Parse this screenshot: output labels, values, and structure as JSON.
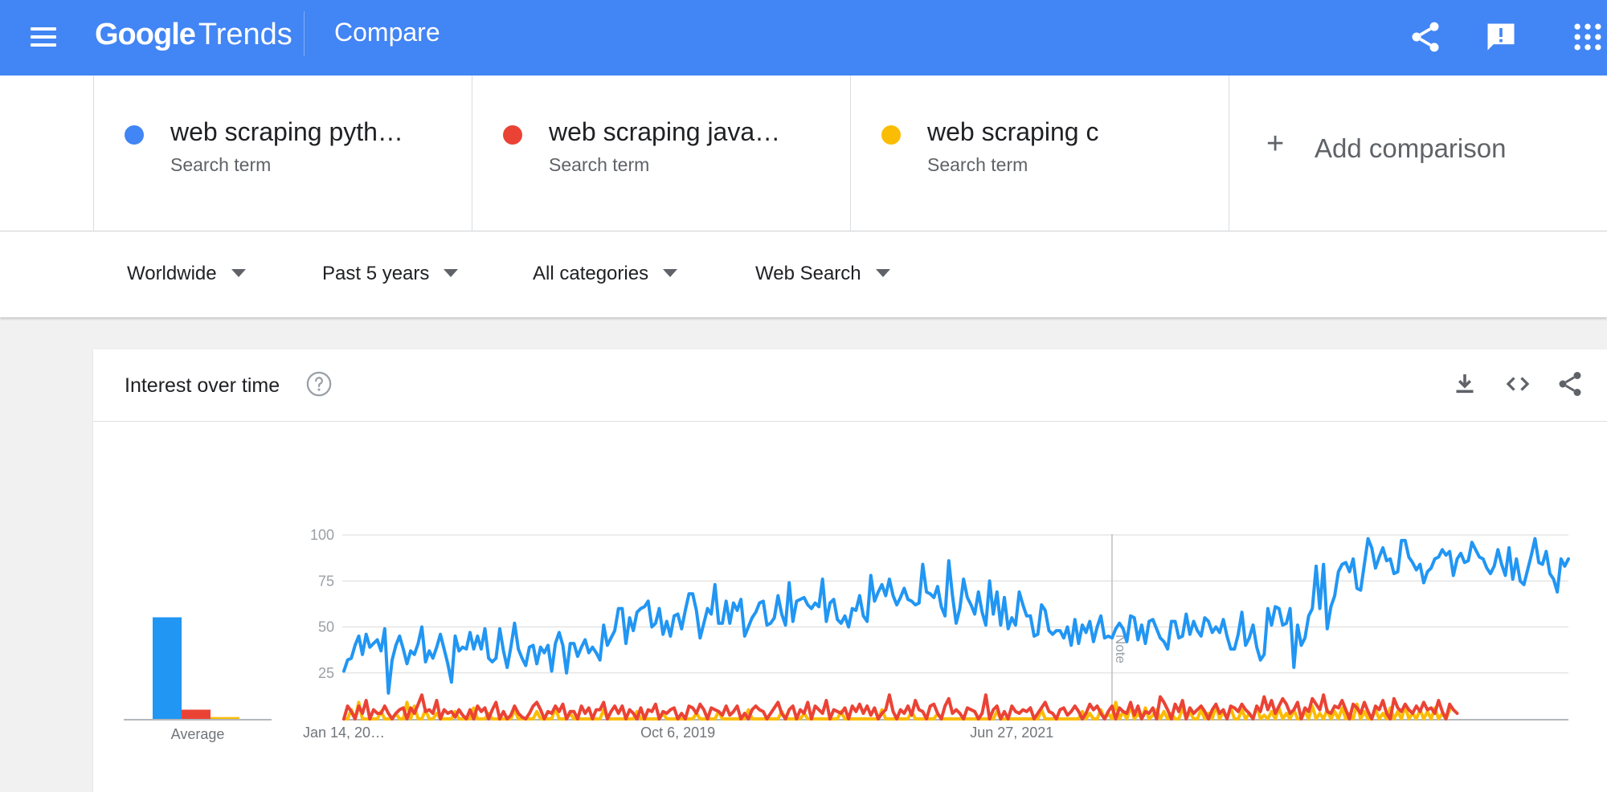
{
  "header": {
    "logo_google": "Google",
    "logo_trends": "Trends",
    "title": "Compare",
    "icons": {
      "menu": "menu-icon",
      "share": "share-icon",
      "feedback": "feedback-icon",
      "apps": "apps-grid-icon"
    }
  },
  "terms": [
    {
      "name": "web scraping pyth…",
      "type": "Search term",
      "color": "#4285f4"
    },
    {
      "name": "web scraping java…",
      "type": "Search term",
      "color": "#ea4335"
    },
    {
      "name": "web scraping c",
      "type": "Search term",
      "color": "#fbbc04"
    }
  ],
  "add_comparison": "Add comparison",
  "filters": {
    "region": "Worldwide",
    "period": "Past 5 years",
    "category": "All categories",
    "search_type": "Web Search"
  },
  "interest_card": {
    "title": "Interest over time",
    "tools": [
      "download-icon",
      "embed-code-icon",
      "share-icon"
    ]
  },
  "chart_data": [
    {
      "type": "bar",
      "categories": [
        "web scraping pyth…",
        "web scraping java…",
        "web scraping c"
      ],
      "values": [
        55,
        5,
        1
      ],
      "colors": [
        "#2196f3",
        "#ea4335",
        "#fbbc04"
      ],
      "xlabel": "Average",
      "ylim": [
        0,
        100
      ]
    },
    {
      "type": "line",
      "x_tick_labels": [
        "Jan 14, 20…",
        "Oct 6, 2019",
        "Jun 27, 2021"
      ],
      "x_tick_index": [
        0,
        90,
        180
      ],
      "y_ticks": [
        25,
        50,
        75,
        100
      ],
      "ylim": [
        0,
        100
      ],
      "grid": true,
      "note_label": "Note",
      "note_index": 207,
      "series": [
        {
          "color": "#2196f3",
          "values": [
            26,
            32,
            33,
            40,
            45,
            35,
            46,
            39,
            41,
            43,
            37,
            49,
            14,
            32,
            40,
            45,
            38,
            30,
            37,
            35,
            41,
            50,
            31,
            37,
            33,
            39,
            46,
            38,
            30,
            20,
            45,
            37,
            39,
            38,
            47,
            38,
            45,
            38,
            49,
            33,
            31,
            33,
            49,
            37,
            28,
            39,
            52,
            38,
            33,
            29,
            39,
            40,
            30,
            39,
            36,
            40,
            26,
            41,
            47,
            40,
            25,
            41,
            41,
            34,
            39,
            43,
            36,
            39,
            36,
            32,
            51,
            40,
            44,
            48,
            60,
            60,
            41,
            55,
            48,
            58,
            60,
            61,
            64,
            50,
            52,
            60,
            46,
            53,
            45,
            56,
            57,
            49,
            59,
            68,
            68,
            59,
            44,
            52,
            60,
            57,
            73,
            52,
            52,
            64,
            52,
            63,
            59,
            65,
            45,
            50,
            55,
            58,
            63,
            64,
            51,
            52,
            55,
            67,
            57,
            51,
            74,
            53,
            64,
            65,
            66,
            62,
            60,
            63,
            61,
            76,
            53,
            63,
            65,
            54,
            52,
            56,
            50,
            60,
            59,
            67,
            56,
            53,
            78,
            64,
            69,
            73,
            67,
            76,
            67,
            62,
            66,
            71,
            65,
            64,
            62,
            63,
            84,
            69,
            68,
            66,
            72,
            61,
            56,
            86,
            67,
            52,
            60,
            76,
            66,
            62,
            57,
            69,
            58,
            51,
            75,
            57,
            69,
            51,
            66,
            49,
            55,
            51,
            69,
            62,
            56,
            56,
            45,
            46,
            62,
            59,
            48,
            46,
            48,
            48,
            44,
            50,
            40,
            54,
            41,
            51,
            47,
            53,
            42,
            50,
            56,
            44,
            45,
            44,
            49,
            52,
            49,
            42,
            56,
            55,
            43,
            51,
            41,
            53,
            54,
            49,
            44,
            42,
            38,
            53,
            53,
            44,
            45,
            57,
            46,
            53,
            48,
            45,
            55,
            53,
            47,
            50,
            47,
            54,
            45,
            38,
            38,
            46,
            58,
            40,
            44,
            51,
            39,
            32,
            35,
            60,
            51,
            61,
            60,
            51,
            52,
            60,
            28,
            51,
            40,
            44,
            56,
            60,
            83,
            60,
            84,
            49,
            61,
            67,
            80,
            84,
            85,
            80,
            87,
            71,
            70,
            84,
            98,
            93,
            82,
            88,
            93,
            86,
            87,
            79,
            80,
            97,
            97,
            88,
            85,
            81,
            84,
            74,
            80,
            82,
            87,
            88,
            92,
            89,
            91,
            78,
            87,
            90,
            85,
            86,
            96,
            92,
            88,
            87,
            82,
            79,
            83,
            92,
            84,
            78,
            93,
            76,
            87,
            75,
            73,
            81,
            89,
            98,
            85,
            84,
            91,
            79,
            76,
            69,
            87,
            83,
            87
          ]
        },
        {
          "color": "#ea4335",
          "values": [
            0,
            7,
            4,
            0,
            7,
            3,
            10,
            0,
            5,
            3,
            3,
            7,
            3,
            0,
            3,
            5,
            6,
            0,
            6,
            3,
            8,
            13,
            4,
            5,
            3,
            10,
            0,
            5,
            3,
            4,
            1,
            5,
            2,
            0,
            5,
            0,
            7,
            4,
            6,
            0,
            5,
            9,
            0,
            4,
            0,
            2,
            7,
            3,
            1,
            0,
            3,
            7,
            9,
            5,
            0,
            4,
            3,
            7,
            4,
            8,
            0,
            4,
            4,
            0,
            7,
            3,
            6,
            0,
            5,
            5,
            9,
            0,
            4,
            7,
            3,
            7,
            0,
            5,
            3,
            0,
            6,
            0,
            5,
            4,
            8,
            0,
            4,
            3,
            5,
            6,
            0,
            3,
            0,
            7,
            6,
            3,
            8,
            5,
            0,
            6,
            5,
            4,
            2,
            7,
            2,
            4,
            7,
            0,
            3,
            0,
            5,
            7,
            5,
            4,
            0,
            3,
            6,
            9,
            3,
            0,
            5,
            7,
            0,
            5,
            3,
            9,
            0,
            7,
            5,
            3,
            10,
            0,
            5,
            4,
            3,
            6,
            0,
            7,
            4,
            8,
            3,
            7,
            2,
            6,
            0,
            3,
            5,
            13,
            4,
            0,
            5,
            3,
            7,
            2,
            10,
            5,
            4,
            0,
            7,
            8,
            3,
            0,
            7,
            11,
            3,
            5,
            3,
            0,
            6,
            5,
            4,
            0,
            3,
            13,
            0,
            5,
            7,
            0,
            4,
            0,
            7,
            4,
            3,
            5,
            4,
            6,
            0,
            3,
            6,
            9,
            4,
            3,
            0,
            5,
            6,
            2,
            4,
            7,
            4,
            0,
            3,
            8,
            5,
            7,
            3,
            0,
            4,
            7,
            0,
            6,
            4,
            3,
            9,
            2,
            7,
            0,
            4,
            3,
            6,
            0,
            12,
            9,
            5,
            0,
            8,
            4,
            10,
            0,
            6,
            3,
            5,
            7,
            4,
            0,
            5,
            8,
            3,
            5,
            0,
            7,
            6,
            4,
            8,
            5,
            3,
            0,
            7,
            4,
            12,
            5,
            10,
            3,
            7,
            11,
            8,
            3,
            5,
            9,
            0,
            6,
            4,
            11,
            8,
            5,
            13,
            4,
            3,
            7,
            6,
            10,
            5,
            0,
            8,
            6,
            3,
            9,
            4,
            0,
            7,
            5,
            10,
            3,
            0,
            11,
            6,
            4,
            8,
            5,
            3,
            7,
            4,
            9,
            5,
            6,
            3,
            10,
            4,
            0,
            8,
            5,
            3
          ]
        },
        {
          "color": "#fbbc04",
          "values": [
            0,
            0,
            5,
            0,
            9,
            0,
            0,
            0,
            0,
            0,
            4,
            0,
            0,
            0,
            3,
            0,
            0,
            9,
            0,
            7,
            0,
            0,
            5,
            0,
            0,
            3,
            0,
            0,
            0,
            0,
            4,
            0,
            0,
            0,
            0,
            6,
            0,
            0,
            0,
            3,
            0,
            0,
            0,
            0,
            0,
            0,
            5,
            0,
            0,
            0,
            0,
            0,
            4,
            0,
            0,
            0,
            0,
            6,
            0,
            0,
            0,
            3,
            0,
            0,
            0,
            0,
            0,
            0,
            0,
            0,
            5,
            0,
            0,
            0,
            0,
            0,
            0,
            0,
            0,
            4,
            0,
            0,
            0,
            0,
            0,
            0,
            3,
            0,
            0,
            0,
            0,
            0,
            0,
            0,
            0,
            3,
            0,
            0,
            0,
            0,
            0,
            4,
            0,
            0,
            0,
            0,
            0,
            0,
            0,
            5,
            0,
            0,
            0,
            0,
            0,
            0,
            0,
            0,
            4,
            0,
            0,
            0,
            0,
            0,
            3,
            0,
            0,
            0,
            0,
            0,
            0,
            0,
            0,
            0,
            4,
            0,
            0,
            0,
            0,
            0,
            0,
            0,
            0,
            0,
            0,
            5,
            0,
            0,
            0,
            0,
            0,
            0,
            0,
            4,
            0,
            0,
            0,
            0,
            0,
            0,
            3,
            0,
            0,
            0,
            0,
            0,
            0,
            0,
            0,
            0,
            0,
            0,
            0,
            0,
            0,
            0,
            4,
            0,
            0,
            0,
            0,
            0,
            0,
            0,
            0,
            0,
            0,
            0,
            5,
            0,
            0,
            0,
            0,
            0,
            0,
            0,
            0,
            0,
            0,
            4,
            0,
            3,
            0,
            0,
            5,
            0,
            3,
            0,
            9,
            0,
            4,
            0,
            7,
            0,
            3,
            0,
            6,
            0,
            2,
            5,
            0,
            4,
            0,
            3,
            0,
            0,
            6,
            0,
            4,
            0,
            0,
            5,
            0,
            3,
            0,
            7,
            0,
            4,
            0,
            6,
            0,
            0,
            5,
            0,
            3,
            0,
            7,
            0,
            2,
            0,
            4,
            0,
            6,
            0,
            3,
            0,
            5,
            0,
            0,
            4,
            0,
            7,
            0,
            3,
            0,
            5,
            0,
            4,
            0,
            6,
            0,
            3,
            0,
            8,
            0,
            4,
            0,
            0,
            5,
            0,
            3,
            0,
            6,
            0,
            4,
            0,
            7,
            0,
            3,
            0,
            5,
            0,
            4,
            0,
            6,
            0,
            3,
            0,
            5
          ]
        }
      ]
    }
  ]
}
